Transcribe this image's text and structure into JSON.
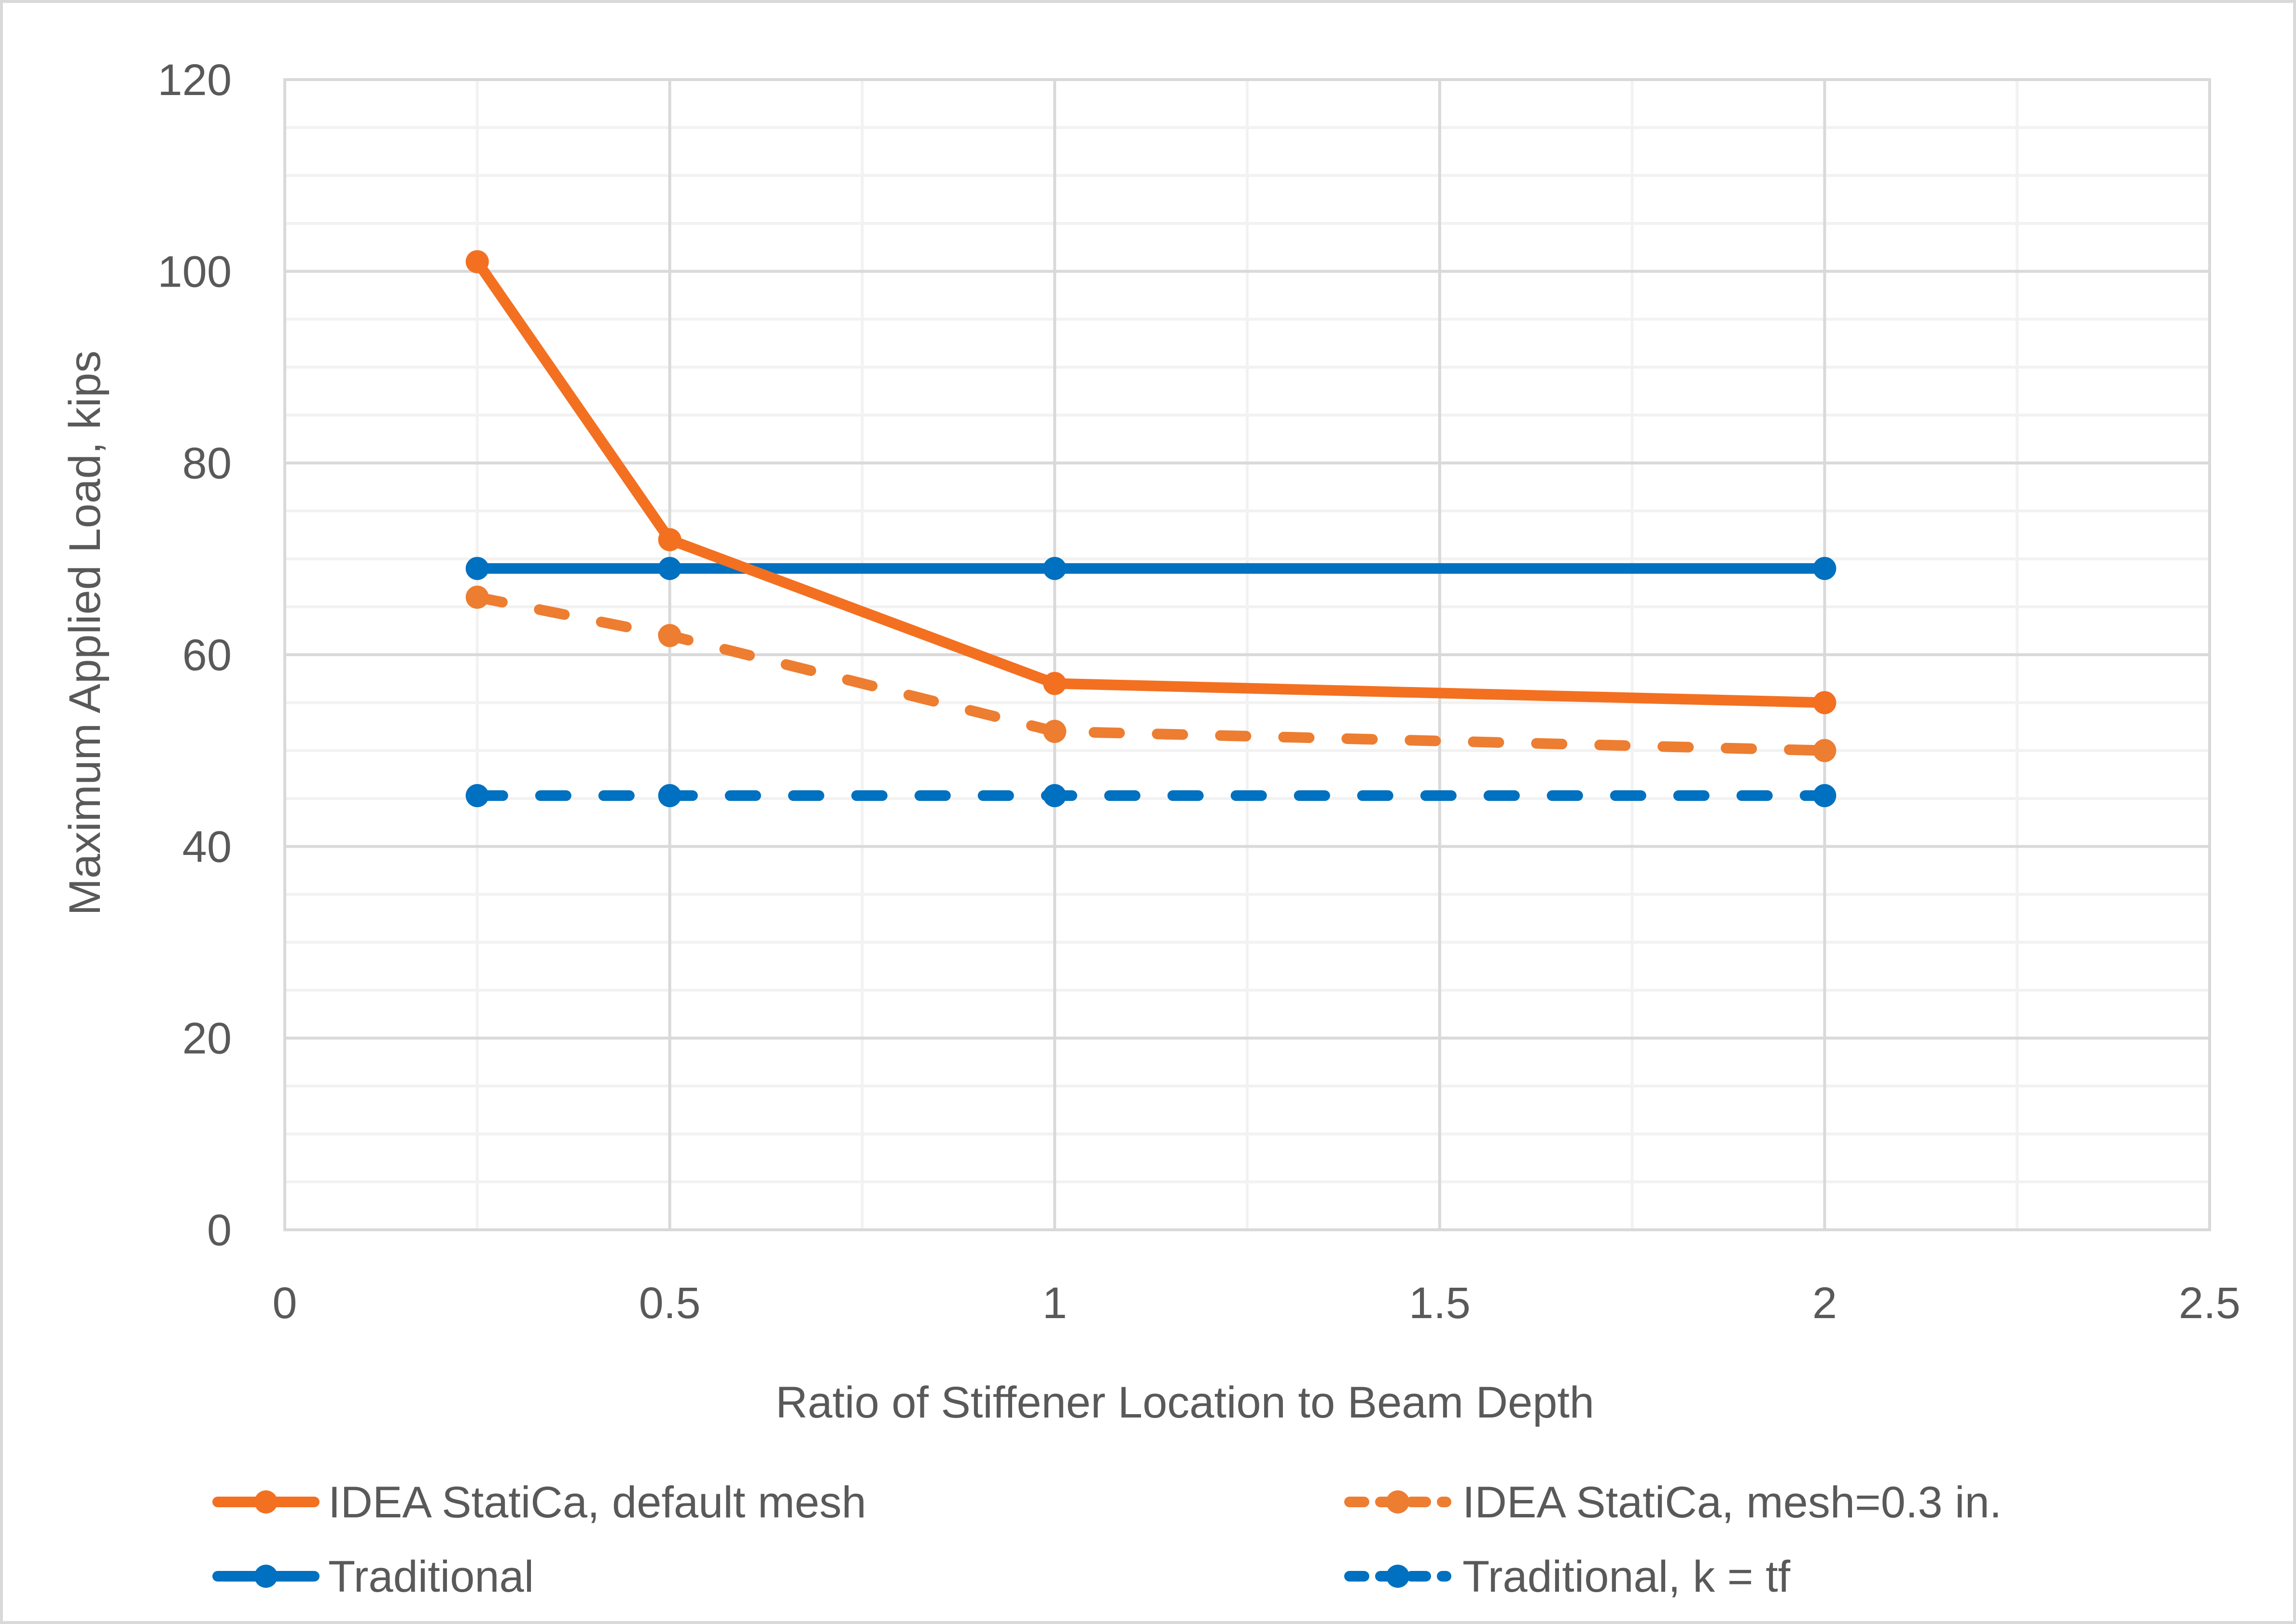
{
  "chart_data": {
    "type": "line",
    "title": "",
    "xlabel": "Ratio of Stiffener Location to Beam Depth",
    "ylabel": "Maximum Applied Load, kips",
    "xlim": [
      0,
      2.5
    ],
    "ylim": [
      0,
      120
    ],
    "x_ticks": [
      0,
      0.5,
      1,
      1.5,
      2,
      2.5
    ],
    "x_tick_labels": [
      "0",
      "0.5",
      "1",
      "1.5",
      "2",
      "2.5"
    ],
    "y_ticks": [
      0,
      20,
      40,
      60,
      80,
      100,
      120
    ],
    "y_tick_labels": [
      "0",
      "20",
      "40",
      "60",
      "80",
      "100",
      "120"
    ],
    "x_minor_step": 0.25,
    "y_minor_step": 5,
    "grid": true,
    "legend_position": "bottom",
    "series": [
      {
        "name": "IDEA StatiCa, default mesh",
        "color": "#F37021",
        "line_style": "solid",
        "marker": "circle",
        "x": [
          0.25,
          0.5,
          1,
          2
        ],
        "y": [
          101,
          72,
          57,
          55
        ]
      },
      {
        "name": "IDEA StatiCa, mesh=0.3 in.",
        "color": "#ED7D31",
        "line_style": "dashed",
        "marker": "circle",
        "x": [
          0.25,
          0.5,
          1,
          2
        ],
        "y": [
          66,
          62,
          52,
          50
        ]
      },
      {
        "name": "Traditional",
        "color": "#0070C0",
        "line_style": "solid",
        "marker": "circle",
        "x": [
          0.25,
          0.5,
          1,
          2
        ],
        "y": [
          69,
          69,
          69,
          69
        ]
      },
      {
        "name": "Traditional, k = tf",
        "color": "#0070C0",
        "line_style": "dashed",
        "marker": "circle",
        "x": [
          0.25,
          0.5,
          1,
          2
        ],
        "y": [
          45.3,
          45.3,
          45.3,
          45.3
        ]
      }
    ],
    "legend_order": [
      0,
      1,
      2,
      3
    ]
  }
}
